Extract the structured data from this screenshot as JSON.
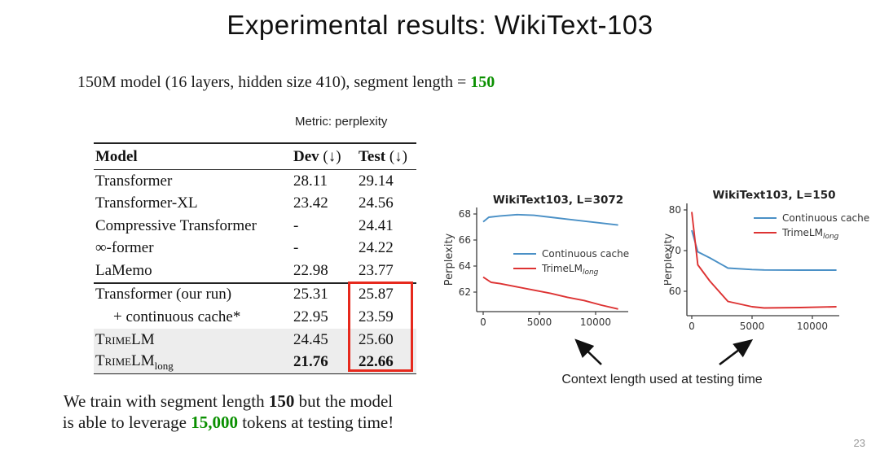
{
  "slide": {
    "title": "Experimental results:  WikiText-103",
    "page_number": "23"
  },
  "subtitle": {
    "prefix": "150M model (16 layers, hidden size 410), segment length = ",
    "highlight": "150"
  },
  "colors": {
    "highlight_green": "#0a9000",
    "box_red": "#e6291d",
    "line_blue": "#4a90c6",
    "line_red": "#dd3333",
    "row_shade": "#ededed"
  },
  "table": {
    "metric_label": "Metric: perplexity",
    "columns": [
      {
        "label": "Model",
        "suffix": ""
      },
      {
        "label": "Dev",
        "suffix": " (↓)"
      },
      {
        "label": "Test",
        "suffix": " (↓)"
      }
    ],
    "groups": [
      {
        "rows": [
          {
            "name": "Transformer",
            "dev": "28.11",
            "test": "29.14"
          },
          {
            "name": "Transformer-XL",
            "dev": "23.42",
            "test": "24.56"
          },
          {
            "name": "Compressive Transformer",
            "dev": "-",
            "test": "24.41"
          },
          {
            "name": "∞-former",
            "dev": "-",
            "test": "24.22"
          },
          {
            "name": "LaMemo",
            "dev": "22.98",
            "test": "23.77"
          }
        ]
      },
      {
        "rows": [
          {
            "name": "Transformer (our run)",
            "dev": "25.31",
            "test": "25.87"
          },
          {
            "name": "+ continuous cache*",
            "dev": "22.95",
            "test": "23.59",
            "indent": true
          },
          {
            "name": "TrimeLM",
            "dev": "24.45",
            "test": "25.60",
            "smallcaps": true,
            "shaded": true
          },
          {
            "name": "TrimeLM",
            "name_sub": "long",
            "dev": "21.76",
            "test": "22.66",
            "smallcaps": true,
            "shaded": true,
            "bold_values": true
          }
        ]
      }
    ],
    "highlight_box": {
      "color": "#e6291d",
      "note": "red box around Test values of bottom group"
    }
  },
  "chart_data": [
    {
      "type": "line",
      "title": "WikiText103, L=3072",
      "xlabel": "",
      "ylabel": "Perplexity",
      "xlim": [
        -580,
        12900
      ],
      "ylim": [
        60.5,
        68.5
      ],
      "xticks": [
        0,
        5000,
        10000
      ],
      "yticks": [
        62,
        64,
        66,
        68
      ],
      "grid": false,
      "legend_position": "center",
      "series": [
        {
          "name": "Continuous cache",
          "name_sub": "",
          "color": "#4a90c6",
          "x": [
            0,
            500,
            1500,
            3000,
            4500,
            6000,
            7500,
            9000,
            10500,
            12000
          ],
          "y": [
            67.4,
            67.75,
            67.85,
            67.95,
            67.9,
            67.75,
            67.6,
            67.45,
            67.3,
            67.15
          ]
        },
        {
          "name": "TrimeLM",
          "name_sub": "long",
          "color": "#dd3333",
          "x": [
            0,
            700,
            1500,
            3000,
            4500,
            6000,
            7500,
            9000,
            10500,
            12000
          ],
          "y": [
            63.15,
            62.75,
            62.65,
            62.4,
            62.15,
            61.9,
            61.6,
            61.35,
            61.0,
            60.7
          ]
        }
      ]
    },
    {
      "type": "line",
      "title": "WikiText103, L=150",
      "xlabel": "",
      "ylabel": "Perplexity",
      "xlim": [
        -405,
        12230
      ],
      "ylim": [
        54,
        81.6
      ],
      "xticks": [
        0,
        5000,
        10000
      ],
      "yticks": [
        60,
        70,
        80
      ],
      "grid": false,
      "legend_position": "upper right",
      "series": [
        {
          "name": "Continuous cache",
          "name_sub": "",
          "color": "#4a90c6",
          "x": [
            0,
            500,
            1500,
            3000,
            5000,
            6000,
            9000,
            12000
          ],
          "y": [
            75.0,
            69.7,
            68.2,
            65.7,
            65.35,
            65.25,
            65.2,
            65.2
          ]
        },
        {
          "name": "TrimeLM",
          "name_sub": "long",
          "color": "#dd3333",
          "x": [
            0,
            500,
            1500,
            3000,
            5000,
            6000,
            9000,
            12000
          ],
          "y": [
            79.5,
            66.5,
            62.5,
            57.5,
            56.2,
            55.9,
            56.0,
            56.2
          ]
        }
      ]
    }
  ],
  "annotation": {
    "caption": "Context length used at testing time"
  },
  "footer": {
    "line1_pre": "We train with segment length ",
    "line1_bold": "150",
    "line1_post": " but the model",
    "line2_pre": "is able to leverage ",
    "line2_highlight": "15,000",
    "line2_post": " tokens at testing time!"
  }
}
